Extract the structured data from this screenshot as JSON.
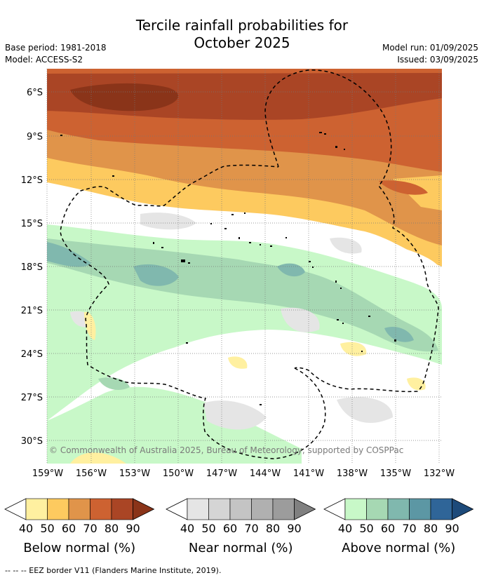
{
  "title_line1": "Tercile rainfall probabilities for",
  "title_line2": "October 2025",
  "base_period": "Base period: 1981-2018",
  "model": "Model: ACCESS-S2",
  "model_run": "Model run: 01/09/2025",
  "issued": "Issued: 03/09/2025",
  "copyright": "© Commonwealth of Australia 2025, Bureau of Meteorology, supported by COSPPac",
  "footnote": "--  --  -- EEZ border V11 (Flanders Marine Institute, 2019).",
  "map": {
    "lat_labels": [
      "6°S",
      "9°S",
      "12°S",
      "15°S",
      "18°S",
      "21°S",
      "24°S",
      "27°S",
      "30°S"
    ],
    "lon_labels": [
      "159°W",
      "156°W",
      "153°W",
      "150°W",
      "147°W",
      "144°W",
      "141°W",
      "138°W",
      "135°W",
      "132°W"
    ]
  },
  "legends": [
    {
      "label": "Below normal (%)",
      "ticks": [
        "40",
        "50",
        "60",
        "70",
        "80",
        "90"
      ],
      "colors": [
        "#fff0a0",
        "#fdca5f",
        "#e0944a",
        "#cd6231",
        "#aa4525",
        "#8a3419"
      ]
    },
    {
      "label": "Near normal (%)",
      "ticks": [
        "40",
        "50",
        "60",
        "70",
        "80",
        "90"
      ],
      "colors": [
        "#e5e5e5",
        "#d5d5d5",
        "#c4c4c4",
        "#b0b0b0",
        "#9c9c9c",
        "#808080"
      ]
    },
    {
      "label": "Above normal (%)",
      "ticks": [
        "40",
        "50",
        "60",
        "70",
        "80",
        "90"
      ],
      "colors": [
        "#c8f8c8",
        "#a6d8b3",
        "#80b8ae",
        "#5c97a4",
        "#2f6598",
        "#1d4a7a"
      ]
    }
  ]
}
